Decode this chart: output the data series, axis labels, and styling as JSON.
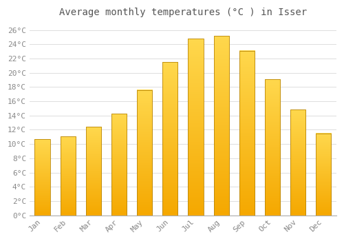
{
  "title": "Average monthly temperatures (°C ) in Isser",
  "months": [
    "Jan",
    "Feb",
    "Mar",
    "Apr",
    "May",
    "Jun",
    "Jul",
    "Aug",
    "Sep",
    "Oct",
    "Nov",
    "Dec"
  ],
  "temperatures": [
    10.7,
    11.1,
    12.4,
    14.3,
    17.6,
    21.5,
    24.8,
    25.2,
    23.1,
    19.1,
    14.8,
    11.5
  ],
  "bar_color_top": "#FFD84D",
  "bar_color_bottom": "#F5A800",
  "bar_edge_color": "#B8860B",
  "background_color": "#FFFFFF",
  "grid_color": "#DDDDDD",
  "ylim": [
    0,
    27
  ],
  "ytick_step": 2,
  "title_fontsize": 10,
  "tick_fontsize": 8,
  "title_color": "#555555",
  "tick_color": "#888888",
  "title_font": "monospace",
  "axis_font": "monospace"
}
